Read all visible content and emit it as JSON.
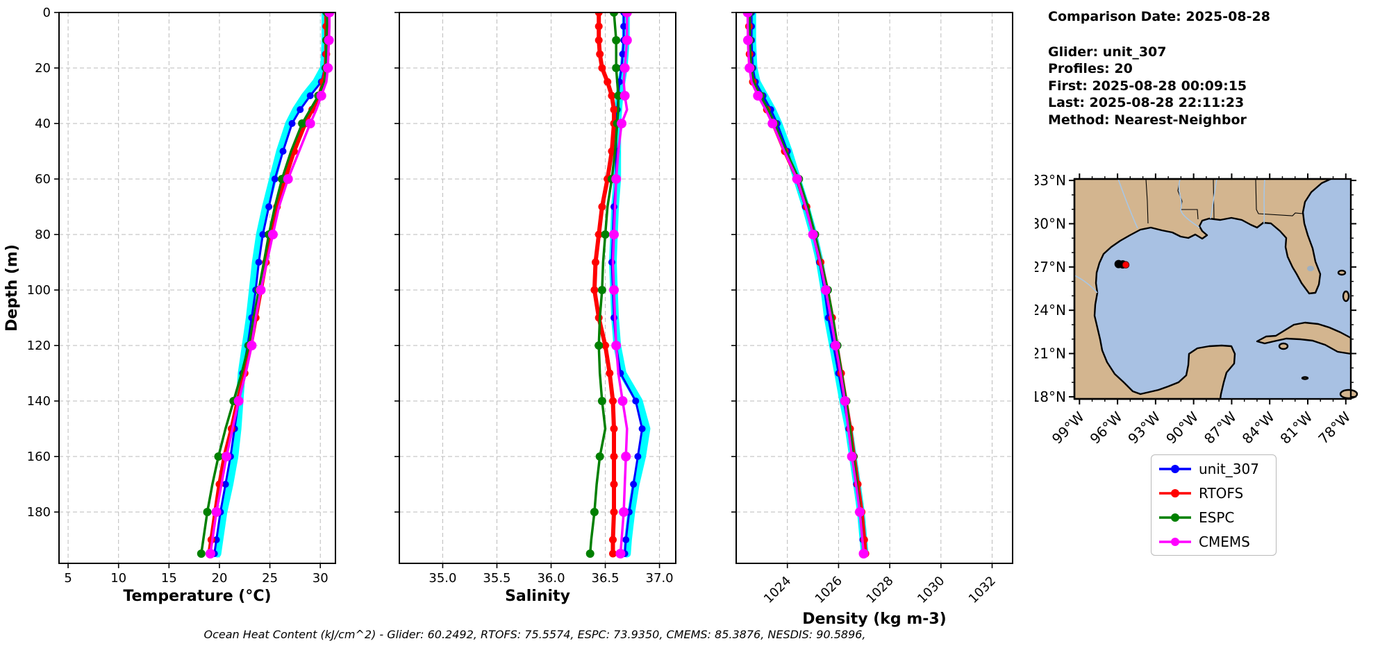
{
  "info_panel": {
    "comparison_date": "Comparison Date: 2025-08-28",
    "glider": "Glider: unit_307",
    "profiles": "Profiles: 20",
    "first": "First: 2025-08-28 00:09:15",
    "last": "Last: 2025-08-28 22:11:23",
    "method": "Method: Nearest-Neighbor"
  },
  "annotation": "Ocean Heat Content (kJ/cm^2) - Glider: 60.2492,  RTOFS: 75.5574,  ESPC: 73.9350,  CMEMS: 85.3876,  NESDIS: 90.5896,",
  "legend": {
    "entries": [
      {
        "label": "unit_307",
        "color": "#0000ff"
      },
      {
        "label": "RTOFS",
        "color": "#ff0000"
      },
      {
        "label": "ESPC",
        "color": "#008000"
      },
      {
        "label": "CMEMS",
        "color": "#ff00ff"
      }
    ]
  },
  "colors": {
    "glider": "#0000ff",
    "glider_raw": "#00ffff",
    "rtofs": "#ff0000",
    "espc": "#008000",
    "cmems": "#ff00ff",
    "grid": "#bbbbbb",
    "land": "#d3b58f",
    "ocean": "#a8c1e3"
  },
  "depths": [
    0,
    5,
    10,
    15,
    20,
    25,
    30,
    35,
    40,
    50,
    60,
    70,
    80,
    90,
    100,
    110,
    120,
    130,
    140,
    150,
    160,
    170,
    180,
    190,
    195
  ],
  "ylabel": "Depth (m)",
  "yticks": [
    0,
    20,
    40,
    60,
    80,
    100,
    120,
    140,
    160,
    180
  ],
  "ytick_labels": [
    "0",
    "20",
    "40",
    "60",
    "80",
    "100",
    "120",
    "140",
    "160",
    "180"
  ],
  "ylim": [
    0,
    198.5
  ],
  "chart_data": [
    {
      "type": "line",
      "name": "temperature-profile",
      "xlabel": "Temperature (°C)",
      "xlim": [
        4.1,
        31.5
      ],
      "xticks": [
        5,
        10,
        15,
        20,
        25,
        30
      ],
      "xtick_labels": [
        "5",
        "10",
        "15",
        "20",
        "25",
        "30"
      ],
      "xtick_rotation": 0,
      "series": [
        {
          "name": "glider-raw-spread",
          "color": "#00ffff",
          "line_width": 11,
          "marker_radius": 0,
          "mark_every": 0,
          "values": [
            30.5,
            30.5,
            30.5,
            30.45,
            30.35,
            29.6,
            28.5,
            27.6,
            26.9,
            26.0,
            25.3,
            24.6,
            24.0,
            23.6,
            23.3,
            23.0,
            22.6,
            22.2,
            22.0,
            21.8,
            21.5,
            21.0,
            20.4,
            20.0,
            19.8
          ]
        },
        {
          "name": "unit_307",
          "color": "#0000ff",
          "line_width": 3,
          "marker_radius": 5,
          "mark_every": 1,
          "values": [
            30.55,
            30.55,
            30.55,
            30.5,
            30.45,
            30.1,
            29.0,
            28.0,
            27.2,
            26.3,
            25.5,
            24.9,
            24.3,
            23.9,
            23.6,
            23.2,
            22.8,
            22.3,
            21.9,
            21.5,
            21.1,
            20.6,
            20.1,
            19.7,
            19.5
          ]
        },
        {
          "name": "RTOFS",
          "color": "#ff0000",
          "line_width": 6,
          "marker_radius": 5.5,
          "mark_every": 1,
          "values": [
            30.6,
            30.6,
            30.6,
            30.6,
            30.55,
            30.3,
            29.9,
            29.2,
            28.5,
            27.4,
            26.5,
            25.7,
            25.1,
            24.6,
            24.1,
            23.6,
            23.1,
            22.5,
            21.8,
            21.2,
            20.5,
            20.0,
            19.6,
            19.2,
            19.0
          ]
        },
        {
          "name": "ESPC",
          "color": "#008000",
          "line_width": 3.5,
          "marker_radius": 6,
          "mark_every": 2,
          "values": [
            30.65,
            30.65,
            30.6,
            30.6,
            30.55,
            30.4,
            29.8,
            29.0,
            28.2,
            27.1,
            26.2,
            25.5,
            24.9,
            24.4,
            23.9,
            23.4,
            22.9,
            22.2,
            21.4,
            20.6,
            19.9,
            19.3,
            18.8,
            18.4,
            18.2
          ]
        },
        {
          "name": "CMEMS",
          "color": "#ff00ff",
          "line_width": 3.5,
          "marker_radius": 7,
          "mark_every": 2,
          "values": [
            30.9,
            30.9,
            30.85,
            30.8,
            30.75,
            30.6,
            30.1,
            29.6,
            29.0,
            27.9,
            26.8,
            25.9,
            25.3,
            24.7,
            24.1,
            23.6,
            23.2,
            22.6,
            21.9,
            21.3,
            20.7,
            20.2,
            19.7,
            19.3,
            19.1
          ]
        }
      ]
    },
    {
      "type": "line",
      "name": "salinity-profile",
      "xlabel": "Salinity",
      "xlim": [
        34.6,
        37.15
      ],
      "xticks": [
        35.0,
        35.5,
        36.0,
        36.5,
        37.0
      ],
      "xtick_labels": [
        "35.0",
        "35.5",
        "36.0",
        "36.5",
        "37.0"
      ],
      "xtick_rotation": 0,
      "series": [
        {
          "name": "glider-raw-spread",
          "color": "#00ffff",
          "line_width": 11,
          "marker_radius": 0,
          "mark_every": 0,
          "values": [
            36.69,
            36.69,
            36.69,
            36.68,
            36.67,
            36.65,
            36.63,
            36.62,
            36.61,
            36.61,
            36.61,
            36.59,
            36.58,
            36.57,
            36.58,
            36.59,
            36.61,
            36.66,
            36.81,
            36.88,
            36.84,
            36.78,
            36.74,
            36.71,
            36.7
          ]
        },
        {
          "name": "unit_307",
          "color": "#0000ff",
          "line_width": 3,
          "marker_radius": 5,
          "mark_every": 1,
          "values": [
            36.67,
            36.67,
            36.67,
            36.66,
            36.65,
            36.63,
            36.62,
            36.61,
            36.6,
            36.6,
            36.6,
            36.58,
            36.57,
            36.56,
            36.57,
            36.58,
            36.6,
            36.64,
            36.78,
            36.84,
            36.8,
            36.76,
            36.72,
            36.69,
            36.68
          ]
        },
        {
          "name": "RTOFS",
          "color": "#ff0000",
          "line_width": 6,
          "marker_radius": 5.5,
          "mark_every": 1,
          "values": [
            36.44,
            36.44,
            36.44,
            36.45,
            36.47,
            36.52,
            36.56,
            36.58,
            36.58,
            36.56,
            36.52,
            36.47,
            36.44,
            36.41,
            36.4,
            36.44,
            36.5,
            36.54,
            36.57,
            36.58,
            36.58,
            36.58,
            36.58,
            36.57,
            36.57
          ]
        },
        {
          "name": "ESPC",
          "color": "#008000",
          "line_width": 3.5,
          "marker_radius": 6,
          "mark_every": 2,
          "values": [
            36.58,
            36.59,
            36.6,
            36.6,
            36.6,
            36.61,
            36.62,
            36.62,
            36.61,
            36.59,
            36.56,
            36.52,
            36.5,
            36.48,
            36.47,
            36.45,
            36.44,
            36.45,
            36.47,
            36.5,
            36.45,
            36.42,
            36.4,
            36.37,
            36.36
          ]
        },
        {
          "name": "CMEMS",
          "color": "#ff00ff",
          "line_width": 3.5,
          "marker_radius": 7,
          "mark_every": 2,
          "values": [
            36.7,
            36.7,
            36.7,
            36.69,
            36.68,
            36.67,
            36.68,
            36.7,
            36.65,
            36.62,
            36.6,
            36.59,
            36.58,
            36.57,
            36.58,
            36.59,
            36.6,
            36.62,
            36.66,
            36.7,
            36.69,
            36.68,
            36.67,
            36.65,
            36.64
          ]
        }
      ]
    },
    {
      "type": "line",
      "name": "density-profile",
      "xlabel": "Density (kg m-3)",
      "xlim": [
        1022.0,
        1032.8
      ],
      "xticks": [
        1024,
        1026,
        1028,
        1030,
        1032
      ],
      "xtick_labels": [
        "1024",
        "1026",
        "1028",
        "1030",
        "1032"
      ],
      "xtick_rotation": 45,
      "series": [
        {
          "name": "glider-raw-spread",
          "color": "#00ffff",
          "line_width": 11,
          "marker_radius": 0,
          "mark_every": 0,
          "values": [
            1022.63,
            1022.63,
            1022.63,
            1022.65,
            1022.68,
            1022.8,
            1023.1,
            1023.4,
            1023.65,
            1024.05,
            1024.38,
            1024.72,
            1025.02,
            1025.27,
            1025.45,
            1025.58,
            1025.78,
            1025.98,
            1026.18,
            1026.4,
            1026.56,
            1026.72,
            1026.87,
            1026.97,
            1027.02
          ]
        },
        {
          "name": "unit_307",
          "color": "#0000ff",
          "line_width": 3,
          "marker_radius": 5,
          "mark_every": 1,
          "values": [
            1022.6,
            1022.6,
            1022.6,
            1022.62,
            1022.65,
            1022.75,
            1023.05,
            1023.35,
            1023.6,
            1024.0,
            1024.35,
            1024.7,
            1025.0,
            1025.25,
            1025.45,
            1025.6,
            1025.8,
            1026.0,
            1026.2,
            1026.4,
            1026.55,
            1026.7,
            1026.85,
            1026.95,
            1027.0
          ]
        },
        {
          "name": "RTOFS",
          "color": "#ff0000",
          "line_width": 6,
          "marker_radius": 5.5,
          "mark_every": 1,
          "values": [
            1022.5,
            1022.5,
            1022.5,
            1022.52,
            1022.55,
            1022.65,
            1022.9,
            1023.2,
            1023.45,
            1023.9,
            1024.4,
            1024.75,
            1025.05,
            1025.3,
            1025.55,
            1025.75,
            1025.92,
            1026.1,
            1026.28,
            1026.45,
            1026.6,
            1026.75,
            1026.9,
            1027.0,
            1027.05
          ]
        },
        {
          "name": "ESPC",
          "color": "#008000",
          "line_width": 3.5,
          "marker_radius": 6,
          "mark_every": 2,
          "values": [
            1022.52,
            1022.52,
            1022.53,
            1022.55,
            1022.58,
            1022.68,
            1022.95,
            1023.25,
            1023.5,
            1023.95,
            1024.45,
            1024.8,
            1025.08,
            1025.32,
            1025.58,
            1025.78,
            1025.95,
            1026.12,
            1026.3,
            1026.45,
            1026.58,
            1026.72,
            1026.85,
            1026.93,
            1026.97
          ]
        },
        {
          "name": "CMEMS",
          "color": "#ff00ff",
          "line_width": 3.5,
          "marker_radius": 7,
          "mark_every": 2,
          "values": [
            1022.45,
            1022.45,
            1022.46,
            1022.48,
            1022.52,
            1022.6,
            1022.85,
            1023.15,
            1023.42,
            1023.88,
            1024.38,
            1024.72,
            1025.0,
            1025.28,
            1025.5,
            1025.7,
            1025.88,
            1026.08,
            1026.25,
            1026.38,
            1026.52,
            1026.68,
            1026.83,
            1026.93,
            1026.98
          ]
        }
      ]
    },
    {
      "type": "map",
      "name": "glider-location-map",
      "region": "Gulf of Mexico",
      "lat_tick_values": [
        33,
        30,
        27,
        24,
        21,
        18
      ],
      "lat_tick_labels": [
        "33°N",
        "30°N",
        "27°N",
        "24°N",
        "21°N",
        "18°N"
      ],
      "lon_tick_values": [
        -99,
        -96,
        -93,
        -90,
        -87,
        -84,
        -81,
        -78
      ],
      "lon_tick_labels": [
        "99°W",
        "96°W",
        "93°W",
        "90°W",
        "87°W",
        "84°W",
        "81°W",
        "78°W"
      ],
      "glider_track": {
        "lon": -95.75,
        "lat": 27.2,
        "color": "#000000"
      },
      "model_point": {
        "lon": -95.35,
        "lat": 27.15,
        "color": "#ff0000"
      }
    }
  ]
}
